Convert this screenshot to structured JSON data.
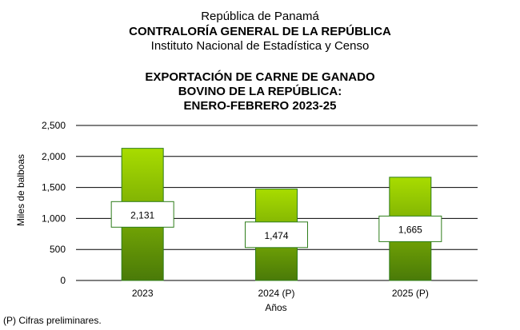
{
  "header": {
    "line1": "República de Panamá",
    "line2": "CONTRALORÍA GENERAL DE LA REPÚBLICA",
    "line3": "Instituto  Nacional de Estadística  y  Censo"
  },
  "footnote": "(P) Cifras  preliminares.",
  "colors": {
    "bar_top": "#a8dc00",
    "bar_bottom": "#4a7a08",
    "bar_stroke": "#2e7d1a",
    "label_stroke": "#2e7d1a"
  },
  "chart_data": {
    "type": "bar",
    "title_lines": [
      "EXPORTACIÓN DE CARNE DE GANADO",
      "BOVINO DE LA REPÚBLICA:",
      "ENERO-FEBRERO 2023-25"
    ],
    "categories": [
      "2023",
      "2024 (P)",
      "2025 (P)"
    ],
    "values": [
      2131,
      1474,
      1665
    ],
    "data_labels": [
      "2,131",
      "1,474",
      "1,665"
    ],
    "xlabel": "Años",
    "ylabel": "Miles de balboas",
    "ylim": [
      0,
      2500
    ],
    "yticks": [
      0,
      500,
      1000,
      1500,
      2000,
      2500
    ],
    "ytick_labels": [
      "0",
      "500",
      "1,000",
      "1,500",
      "2,000",
      "2,500"
    ],
    "grid": true
  }
}
